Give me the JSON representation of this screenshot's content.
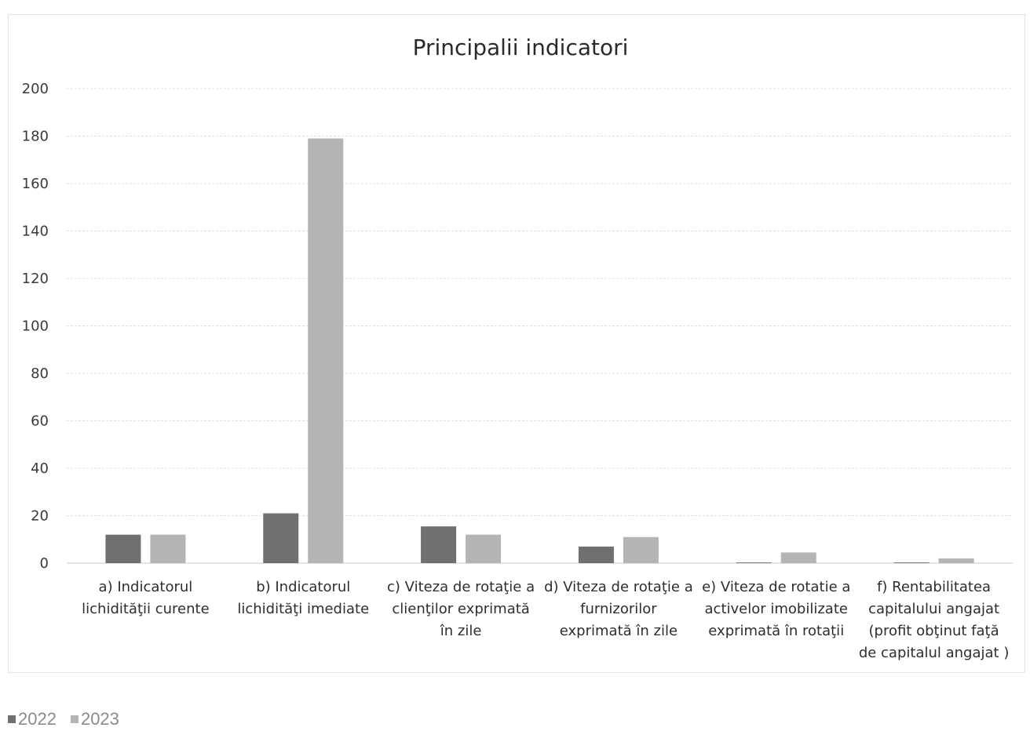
{
  "chart_data": {
    "type": "bar",
    "title": "Principalii indicatori",
    "xlabel": "",
    "ylabel": "",
    "ylim": [
      0,
      200
    ],
    "yticks": [
      0,
      20,
      40,
      60,
      80,
      100,
      120,
      140,
      160,
      180,
      200
    ],
    "grid": true,
    "legend_position": "bottom-left",
    "categories": [
      [
        "a) Indicatorul",
        "lichidităţii curente"
      ],
      [
        "b) Indicatorul",
        "lichidităţi imediate"
      ],
      [
        "c) Viteza de rotaţie a",
        "clienţilor exprimată",
        "în zile"
      ],
      [
        "d) Viteza de rotaţie a",
        "furnizorilor",
        "exprimată în zile"
      ],
      [
        "e) Viteza de rotatie a",
        "activelor imobilizate",
        "exprimată în rotaţii"
      ],
      [
        "f) Rentabilitatea",
        "capitalului angajat",
        "(profit obţinut faţă",
        "de capitalul angajat )"
      ]
    ],
    "series": [
      {
        "name": "2022",
        "color": "#707070",
        "values": [
          12,
          21,
          15.5,
          7,
          0.3,
          0.3
        ]
      },
      {
        "name": "2023",
        "color": "#b4b4b4",
        "values": [
          12,
          179,
          12,
          11,
          4.5,
          2
        ]
      }
    ]
  }
}
